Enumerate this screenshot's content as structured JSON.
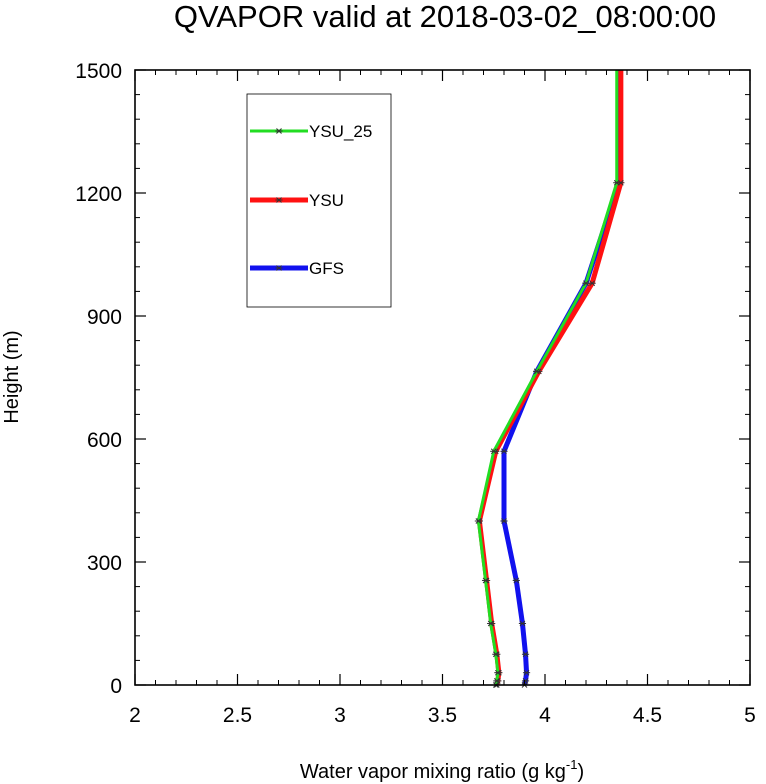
{
  "chart_data": {
    "type": "line",
    "title": "QVAPOR valid at 2018-03-02_08:00:00",
    "xlabel": "Water vapor mixing ratio (g kg",
    "xlabel_sup": "-1",
    "xlabel_tail": ")",
    "ylabel": "Height (m)",
    "xlim": [
      2,
      5
    ],
    "ylim": [
      0,
      1500
    ],
    "x_ticks": [
      2,
      2.5,
      3,
      3.5,
      4,
      4.5,
      5
    ],
    "x_tick_labels": [
      "2",
      "2.5",
      "3",
      "3.5",
      "4",
      "4.5",
      "5"
    ],
    "y_ticks": [
      0,
      300,
      600,
      900,
      1200,
      1500
    ],
    "y_tick_labels": [
      "0",
      "300",
      "600",
      "900",
      "1200",
      "1500"
    ],
    "grid": false,
    "legend_position": "top-left",
    "series": [
      {
        "name": "YSU_25",
        "color": "#22dd22",
        "points": [
          {
            "x": 3.76,
            "y": 0
          },
          {
            "x": 3.765,
            "y": 10
          },
          {
            "x": 3.77,
            "y": 30
          },
          {
            "x": 3.76,
            "y": 75
          },
          {
            "x": 3.735,
            "y": 150
          },
          {
            "x": 3.71,
            "y": 255
          },
          {
            "x": 3.675,
            "y": 400
          },
          {
            "x": 3.75,
            "y": 570
          },
          {
            "x": 3.96,
            "y": 765
          },
          {
            "x": 4.2,
            "y": 980
          },
          {
            "x": 4.35,
            "y": 1225
          },
          {
            "x": 4.35,
            "y": 1500
          }
        ]
      },
      {
        "name": "YSU",
        "color": "#ff1111",
        "points": [
          {
            "x": 3.765,
            "y": 0
          },
          {
            "x": 3.77,
            "y": 10
          },
          {
            "x": 3.775,
            "y": 30
          },
          {
            "x": 3.765,
            "y": 75
          },
          {
            "x": 3.74,
            "y": 150
          },
          {
            "x": 3.715,
            "y": 255
          },
          {
            "x": 3.68,
            "y": 400
          },
          {
            "x": 3.76,
            "y": 570
          },
          {
            "x": 3.97,
            "y": 765
          },
          {
            "x": 4.23,
            "y": 980
          },
          {
            "x": 4.37,
            "y": 1225
          },
          {
            "x": 4.37,
            "y": 1500
          }
        ]
      },
      {
        "name": "GFS",
        "color": "#1111ee",
        "points": [
          {
            "x": 3.9,
            "y": 0
          },
          {
            "x": 3.905,
            "y": 10
          },
          {
            "x": 3.91,
            "y": 30
          },
          {
            "x": 3.905,
            "y": 75
          },
          {
            "x": 3.89,
            "y": 150
          },
          {
            "x": 3.86,
            "y": 255
          },
          {
            "x": 3.8,
            "y": 400
          },
          {
            "x": 3.8,
            "y": 570
          },
          {
            "x": 3.96,
            "y": 765
          },
          {
            "x": 4.2,
            "y": 980
          },
          {
            "x": 4.36,
            "y": 1225
          },
          {
            "x": 4.36,
            "y": 1500
          }
        ]
      }
    ]
  }
}
